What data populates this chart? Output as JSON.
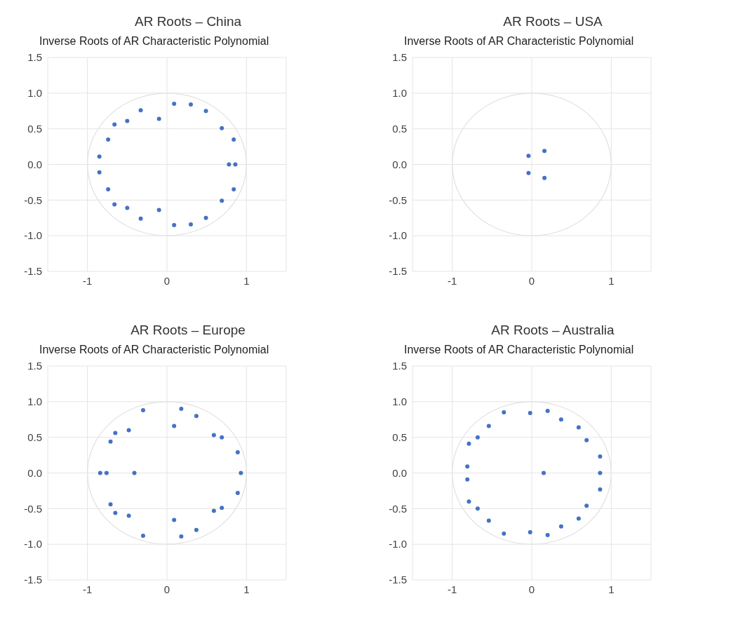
{
  "chart_data": [
    {
      "type": "scatter",
      "title": "AR Roots – China",
      "subtitle": "Inverse Roots of AR Characteristic Polynomial",
      "xlim": [
        -1.5,
        1.5
      ],
      "xticks": [
        -1,
        0,
        1
      ],
      "ylim": [
        -1.5,
        1.5
      ],
      "yticks": [
        {
          "value": -1.5,
          "label": "-1.5"
        },
        {
          "value": -1,
          "label": "-1.0"
        },
        {
          "value": -0.5,
          "label": "-0.5"
        },
        {
          "value": 0,
          "label": "0.0"
        },
        {
          "value": 0.5,
          "label": "0.5"
        },
        {
          "value": 1,
          "label": "1.0"
        },
        {
          "value": 1.5,
          "label": "1.5"
        }
      ],
      "grid": true,
      "series": [
        {
          "type": "scatter",
          "color": "#4472c4",
          "marker": "circle",
          "x": [
            0.09,
            0.3,
            0.49,
            0.69,
            0.84,
            0.78,
            0.86,
            0.84,
            0.69,
            0.49,
            0.3,
            0.09,
            -0.1,
            -0.33,
            -0.5,
            -0.66,
            -0.74,
            -0.85,
            -0.85,
            -0.74,
            -0.66,
            -0.5,
            -0.33,
            -0.1
          ],
          "values": [
            0.85,
            0.84,
            0.75,
            0.51,
            0.35,
            0,
            0,
            -0.35,
            -0.51,
            -0.75,
            -0.84,
            -0.85,
            -0.64,
            -0.76,
            -0.61,
            -0.56,
            -0.35,
            -0.11,
            0.11,
            0.35,
            0.56,
            0.61,
            0.76,
            0.64
          ]
        }
      ]
    },
    {
      "type": "scatter",
      "title": "AR Roots – USA",
      "subtitle": "Inverse Roots of AR Characteristic Polynomial",
      "xlim": [
        -1.5,
        1.5
      ],
      "xticks": [
        -1,
        0,
        1
      ],
      "ylim": [
        -1.5,
        1.5
      ],
      "yticks": [
        {
          "value": -1.5,
          "label": "-1.5"
        },
        {
          "value": -1,
          "label": "-1.0"
        },
        {
          "value": -0.5,
          "label": "-0.5"
        },
        {
          "value": 0,
          "label": "0.0"
        },
        {
          "value": 0.5,
          "label": "0.5"
        },
        {
          "value": 1,
          "label": "1.0"
        },
        {
          "value": 1.5,
          "label": "1.5"
        }
      ],
      "grid": true,
      "series": [
        {
          "type": "scatter",
          "color": "#4472c4",
          "marker": "circle",
          "x": [
            -0.04,
            0.16,
            -0.04,
            0.16
          ],
          "values": [
            0.12,
            0.19,
            -0.12,
            -0.19
          ]
        }
      ]
    },
    {
      "type": "scatter",
      "title": "AR Roots – Europe",
      "subtitle": "Inverse Roots of AR Characteristic Polynomial",
      "xlim": [
        -1.5,
        1.5
      ],
      "xticks": [
        -1,
        0,
        1
      ],
      "ylim": [
        -1.5,
        1.5
      ],
      "yticks": [
        {
          "value": -1.5,
          "label": "-1.5"
        },
        {
          "value": -1,
          "label": "-1.0"
        },
        {
          "value": -0.5,
          "label": "-0.5"
        },
        {
          "value": 0,
          "label": "0.0"
        },
        {
          "value": 0.5,
          "label": "0.5"
        },
        {
          "value": 1,
          "label": "1.0"
        },
        {
          "value": 1.5,
          "label": "1.5"
        }
      ],
      "grid": true,
      "series": [
        {
          "type": "scatter",
          "color": "#4472c4",
          "marker": "circle",
          "x": [
            -0.3,
            0.18,
            0.37,
            0.09,
            0.59,
            0.69,
            0.89,
            0.93,
            0.89,
            0.69,
            0.59,
            0.37,
            0.18,
            0.09,
            -0.3,
            -0.48,
            -0.65,
            -0.71,
            -0.84,
            -0.76,
            -0.41,
            -0.71,
            -0.65,
            -0.48
          ],
          "values": [
            0.88,
            0.9,
            0.8,
            0.66,
            0.53,
            0.5,
            0.29,
            0,
            -0.28,
            -0.49,
            -0.53,
            -0.8,
            -0.89,
            -0.66,
            -0.88,
            -0.6,
            -0.56,
            -0.44,
            0,
            0,
            0,
            0.44,
            0.56,
            0.6
          ]
        }
      ]
    },
    {
      "type": "scatter",
      "title": "AR Roots – Australia",
      "subtitle": "Inverse Roots of AR Characteristic Polynomial",
      "xlim": [
        -1.5,
        1.5
      ],
      "xticks": [
        -1,
        0,
        1
      ],
      "ylim": [
        -1.5,
        1.5
      ],
      "yticks": [
        {
          "value": -1.5,
          "label": "-1.5"
        },
        {
          "value": -1,
          "label": "-1.0"
        },
        {
          "value": -0.5,
          "label": "-0.5"
        },
        {
          "value": 0,
          "label": "0.0"
        },
        {
          "value": 0.5,
          "label": "0.5"
        },
        {
          "value": 1,
          "label": "1.0"
        },
        {
          "value": 1.5,
          "label": "1.5"
        }
      ],
      "grid": true,
      "series": [
        {
          "type": "scatter",
          "color": "#4472c4",
          "marker": "circle",
          "x": [
            -0.35,
            -0.02,
            0.2,
            0.37,
            0.59,
            0.69,
            0.86,
            0.86,
            0.86,
            0.69,
            0.59,
            0.37,
            0.2,
            -0.02,
            -0.35,
            -0.54,
            -0.68,
            -0.79,
            -0.81,
            -0.81,
            -0.79,
            -0.68,
            -0.54,
            0.15
          ],
          "values": [
            0.85,
            0.84,
            0.87,
            0.75,
            0.64,
            0.46,
            0.23,
            0,
            -0.23,
            -0.46,
            -0.64,
            -0.75,
            -0.87,
            -0.83,
            -0.85,
            -0.67,
            -0.5,
            -0.4,
            -0.09,
            0.09,
            0.41,
            0.5,
            0.66,
            0
          ]
        }
      ]
    }
  ]
}
